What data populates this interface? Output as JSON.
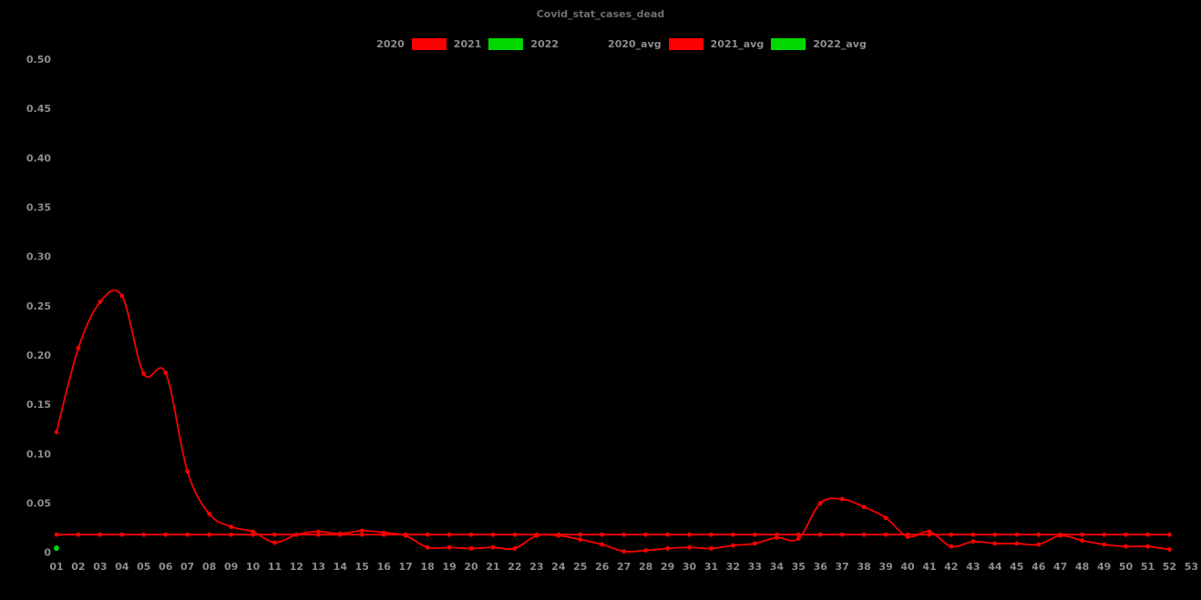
{
  "title": "Covid_stat_cases_dead",
  "colors": {
    "background": "#000000",
    "tick_label": "#8c8c8c",
    "title": "#6f6f6f",
    "series_red": "#fb0000",
    "series_green": "#00d800",
    "series_black": "#000000"
  },
  "legend": {
    "items": [
      {
        "label": "2020",
        "color": "#000000"
      },
      {
        "label": "2021",
        "color": "#fb0000"
      },
      {
        "label": "2022",
        "color": "#00d800"
      },
      {
        "label": "2020_avg",
        "color": "#000000"
      },
      {
        "label": "2021_avg",
        "color": "#fb0000"
      },
      {
        "label": "2022_avg",
        "color": "#00d800"
      }
    ]
  },
  "chart_data": {
    "type": "line",
    "title": "Covid_stat_cases_dead",
    "xlabel": "",
    "ylabel": "",
    "grid": false,
    "legend_position": "top-center",
    "background": "#000000",
    "ylim": [
      0,
      0.52
    ],
    "xlim_weeks": [
      1,
      53
    ],
    "y_ticks": [
      0,
      0.05,
      0.1,
      0.15,
      0.2,
      0.25,
      0.3,
      0.35,
      0.4,
      0.45,
      0.5
    ],
    "y_tick_labels": [
      "0",
      "0.05",
      "0.10",
      "0.15",
      "0.20",
      "0.25",
      "0.30",
      "0.35",
      "0.40",
      "0.45",
      "0.50"
    ],
    "x_tick_labels": [
      "01",
      "02",
      "03",
      "04",
      "05",
      "06",
      "07",
      "08",
      "09",
      "10",
      "11",
      "12",
      "13",
      "14",
      "15",
      "16",
      "17",
      "18",
      "19",
      "20",
      "21",
      "22",
      "23",
      "24",
      "25",
      "26",
      "27",
      "28",
      "29",
      "30",
      "31",
      "32",
      "33",
      "34",
      "35",
      "36",
      "37",
      "38",
      "39",
      "40",
      "41",
      "42",
      "43",
      "44",
      "45",
      "46",
      "47",
      "48",
      "49",
      "50",
      "51",
      "52",
      "53"
    ],
    "series": [
      {
        "name": "2020",
        "color": "#000000",
        "style": "line+markers",
        "values": [],
        "note": "not visible (black line on black background)"
      },
      {
        "name": "2021",
        "color": "#fb0000",
        "style": "line+markers",
        "start_week": 1,
        "values": [
          0.122,
          0.207,
          0.254,
          0.26,
          0.181,
          0.182,
          0.082,
          0.039,
          0.026,
          0.021,
          0.01,
          0.018,
          0.021,
          0.019,
          0.022,
          0.02,
          0.017,
          0.005,
          0.005,
          0.004,
          0.005,
          0.004,
          0.017,
          0.017,
          0.013,
          0.008,
          0.001,
          0.002,
          0.004,
          0.005,
          0.004,
          0.007,
          0.009,
          0.015,
          0.014,
          0.05,
          0.054,
          0.046,
          0.035,
          0.016,
          0.021,
          0.006,
          0.011,
          0.009,
          0.009,
          0.008,
          0.017,
          0.012,
          0.008,
          0.006,
          0.006,
          0.003
        ]
      },
      {
        "name": "2022",
        "color": "#00d800",
        "style": "markers",
        "start_week": 1,
        "values": [
          0.004
        ]
      },
      {
        "name": "2020_avg",
        "color": "#000000",
        "style": "line+markers",
        "values": [],
        "note": "not visible (black line on black background)"
      },
      {
        "name": "2021_avg",
        "color": "#fb0000",
        "style": "line+markers",
        "constant": 0.018,
        "start_week": 1,
        "end_week": 52
      },
      {
        "name": "2022_avg",
        "color": "#00d800",
        "style": "markers",
        "start_week": 1,
        "values": [
          0.0045
        ]
      }
    ]
  }
}
